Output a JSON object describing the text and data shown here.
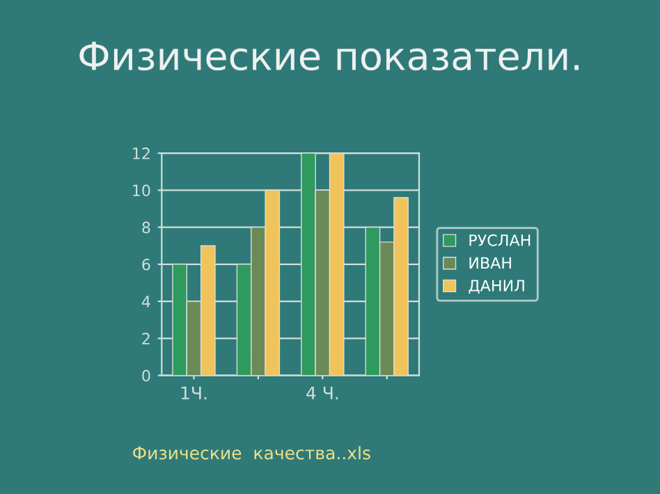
{
  "chart_data": {
    "type": "bar",
    "title": "Физические показатели.",
    "categories": [
      "1Ч.",
      null,
      "4 Ч.",
      null
    ],
    "series": [
      {
        "name": "РУСЛАН",
        "color": "#2e9a5e",
        "values": [
          6,
          6,
          12,
          8
        ]
      },
      {
        "name": "ИВАН",
        "color": "#6b8a55",
        "values": [
          4,
          8,
          10,
          7.2
        ]
      },
      {
        "name": "ДАНИЛ",
        "color": "#f0c45a",
        "values": [
          7,
          10,
          12,
          9.6
        ]
      }
    ],
    "ylim": [
      0,
      12
    ],
    "yticks": [
      0,
      2,
      4,
      6,
      8,
      10,
      12
    ],
    "grid": "y",
    "legend": "right",
    "annotations": [
      "Физические  качества..xls"
    ]
  }
}
